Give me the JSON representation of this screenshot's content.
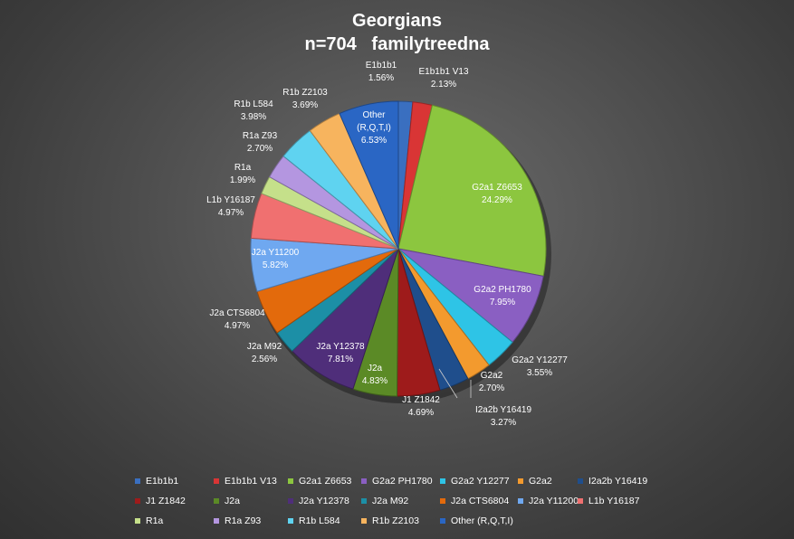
{
  "chart_data": {
    "type": "pie",
    "title_line1": "Georgians",
    "title_line2": "n=704   familytreedna",
    "slices": [
      {
        "name": "E1b1b1",
        "value": 1.56,
        "label": "1.56%",
        "color": "#3a6fc0"
      },
      {
        "name": "E1b1b1 V13",
        "value": 2.13,
        "label": "2.13%",
        "color": "#d93535"
      },
      {
        "name": "G2a1 Z6653",
        "value": 24.29,
        "label": "24.29%",
        "color": "#8cc63f"
      },
      {
        "name": "G2a2 PH1780",
        "value": 7.95,
        "label": "7.95%",
        "color": "#8a5fc2"
      },
      {
        "name": "G2a2 Y12277",
        "value": 3.55,
        "label": "3.55%",
        "color": "#2ec4e6"
      },
      {
        "name": "G2a2",
        "value": 2.7,
        "label": "2.70%",
        "color": "#f39a2e"
      },
      {
        "name": "I2a2b Y16419",
        "value": 3.27,
        "label": "3.27%",
        "color": "#1f4e8c"
      },
      {
        "name": "J1 Z1842",
        "value": 4.69,
        "label": "4.69%",
        "color": "#9e1b1b"
      },
      {
        "name": "J2a",
        "value": 4.83,
        "label": "4.83%",
        "color": "#5b8a26"
      },
      {
        "name": "J2a Y12378",
        "value": 7.81,
        "label": "7.81%",
        "color": "#4f2e7a"
      },
      {
        "name": "J2a M92",
        "value": 2.56,
        "label": "2.56%",
        "color": "#1c8fa6"
      },
      {
        "name": "J2a CTS6804",
        "value": 4.97,
        "label": "4.97%",
        "color": "#e36a0c"
      },
      {
        "name": "J2a Y11200",
        "value": 5.82,
        "label": "5.82%",
        "color": "#6fa8f0"
      },
      {
        "name": "L1b Y16187",
        "value": 4.97,
        "label": "4.97%",
        "color": "#f07070"
      },
      {
        "name": "R1a",
        "value": 1.99,
        "label": "1.99%",
        "color": "#c5e08a"
      },
      {
        "name": "R1a Z93",
        "value": 2.7,
        "label": "2.70%",
        "color": "#b496e0"
      },
      {
        "name": "R1b L584",
        "value": 3.98,
        "label": "3.98%",
        "color": "#5fd3f0"
      },
      {
        "name": "R1b Z2103",
        "value": 3.69,
        "label": "3.69%",
        "color": "#f7b45e"
      },
      {
        "name": "Other (R,Q,T,I)",
        "value": 6.53,
        "label": "6.53%",
        "color": "#2a66c4"
      }
    ],
    "legend_position": "bottom"
  }
}
